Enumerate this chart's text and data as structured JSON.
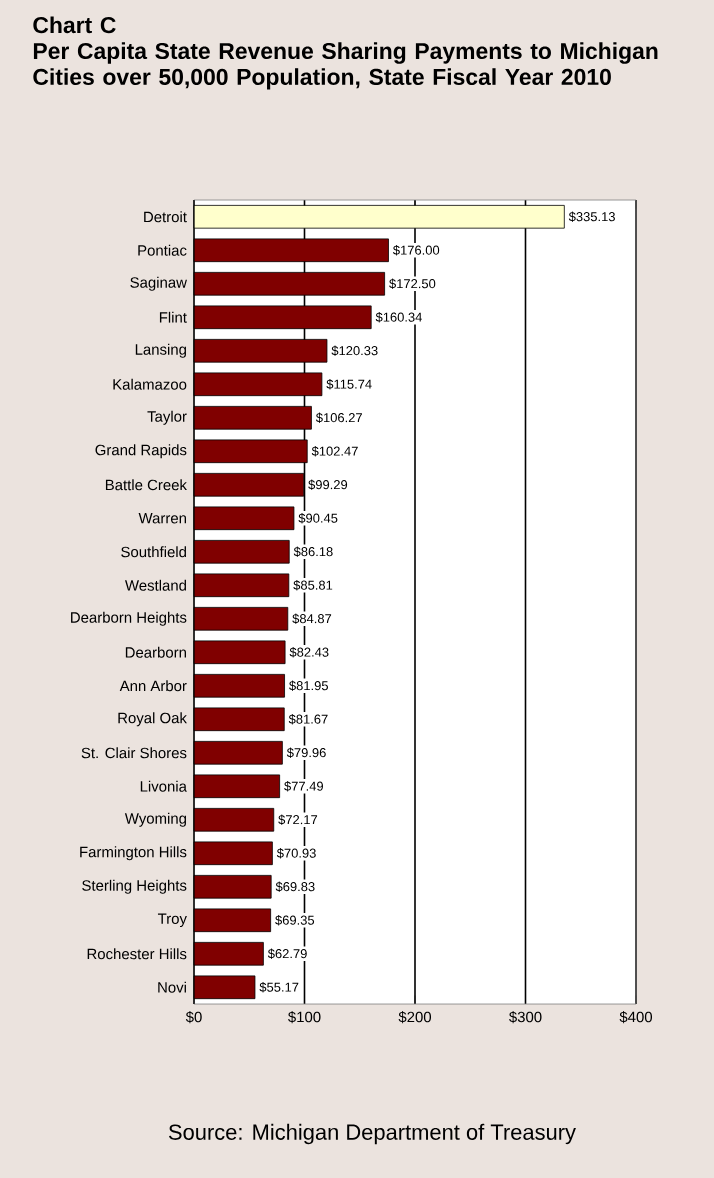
{
  "chart_data": {
    "type": "bar",
    "orientation": "horizontal",
    "title": "Chart C",
    "subtitle": "Per Capita State Revenue Sharing Payments to Michigan Cities over 50,000 Population, State Fiscal Year 2010",
    "categories": [
      "Detroit",
      "Pontiac",
      "Saginaw",
      "Flint",
      "Lansing",
      "Kalamazoo",
      "Taylor",
      "Grand Rapids",
      "Battle Creek",
      "Warren",
      "Southfield",
      "Westland",
      "Dearborn Heights",
      "Dearborn",
      "Ann Arbor",
      "Royal Oak",
      "St. Clair Shores",
      "Livonia",
      "Wyoming",
      "Farmington Hills",
      "Sterling Heights",
      "Troy",
      "Rochester Hills",
      "Novi"
    ],
    "values": [
      335.13,
      176.0,
      172.5,
      160.34,
      120.33,
      115.74,
      106.27,
      102.47,
      99.29,
      90.45,
      86.18,
      85.81,
      84.87,
      82.43,
      81.95,
      81.67,
      79.96,
      77.49,
      72.17,
      70.93,
      69.83,
      69.35,
      62.79,
      55.17
    ],
    "value_labels": [
      "$335.13",
      "$176.00",
      "$172.50",
      "$160.34",
      "$120.33",
      "$115.74",
      "$106.27",
      "$102.47",
      "$99.29",
      "$90.45",
      "$86.18",
      "$85.81",
      "$84.87",
      "$82.43",
      "$81.95",
      "$81.67",
      "$79.96",
      "$77.49",
      "$72.17",
      "$70.93",
      "$69.83",
      "$69.35",
      "$62.79",
      "$55.17"
    ],
    "colors": [
      "#ffffcc",
      "#800000",
      "#800000",
      "#800000",
      "#800000",
      "#800000",
      "#800000",
      "#800000",
      "#800000",
      "#800000",
      "#800000",
      "#800000",
      "#800000",
      "#800000",
      "#800000",
      "#800000",
      "#800000",
      "#800000",
      "#800000",
      "#800000",
      "#800000",
      "#800000",
      "#800000",
      "#800000"
    ],
    "xlim": [
      0,
      400
    ],
    "xticks": [
      {
        "value": 0,
        "label": "$0"
      },
      {
        "value": 100,
        "label": "$100"
      },
      {
        "value": 200,
        "label": "$200"
      },
      {
        "value": 300,
        "label": "$300"
      },
      {
        "value": 400,
        "label": "$400"
      }
    ],
    "grid": "x",
    "annotations": [
      "Source:  Michigan Department of Treasury"
    ]
  }
}
